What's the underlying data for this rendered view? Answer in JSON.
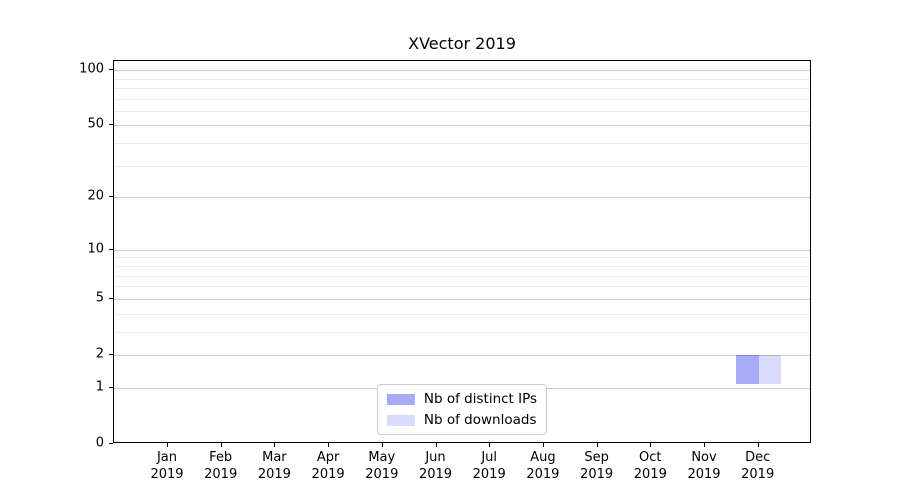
{
  "chart_data": {
    "type": "bar",
    "title": "XVector 2019",
    "xlabel": "",
    "ylabel": "",
    "categories": [
      "Jan 2019",
      "Feb 2019",
      "Mar 2019",
      "Apr 2019",
      "May 2019",
      "Jun 2019",
      "Jul 2019",
      "Aug 2019",
      "Sep 2019",
      "Oct 2019",
      "Nov 2019",
      "Dec 2019"
    ],
    "x_tick_line1": [
      "Jan",
      "Feb",
      "Mar",
      "Apr",
      "May",
      "Jun",
      "Jul",
      "Aug",
      "Sep",
      "Oct",
      "Nov",
      "Dec"
    ],
    "x_tick_line2": [
      "2019",
      "2019",
      "2019",
      "2019",
      "2019",
      "2019",
      "2019",
      "2019",
      "2019",
      "2019",
      "2019",
      "2019"
    ],
    "series": [
      {
        "name": "Nb of distinct IPs",
        "color": "#a7abf5",
        "values": [
          0,
          0,
          0,
          0,
          0,
          0,
          0,
          0,
          0,
          0,
          0,
          2
        ]
      },
      {
        "name": "Nb of downloads",
        "color": "#d8dbf9",
        "values": [
          0,
          0,
          0,
          0,
          0,
          0,
          0,
          0,
          0,
          0,
          0,
          2
        ]
      }
    ],
    "y_major_ticks": [
      0,
      1,
      2,
      5,
      10,
      20,
      50,
      100
    ],
    "y_minor_ticks": [
      3,
      4,
      6,
      7,
      8,
      9,
      30,
      40,
      60,
      70,
      80,
      90
    ],
    "ylim": [
      0,
      112
    ],
    "scale": "log1p",
    "grid": "both",
    "legend_position": "lower center",
    "colors": {
      "spine": "#000000",
      "major_grid": "rgba(0,0,0,0.20)",
      "minor_grid": "rgba(0,0,0,0.075)",
      "background": "#ffffff"
    }
  }
}
